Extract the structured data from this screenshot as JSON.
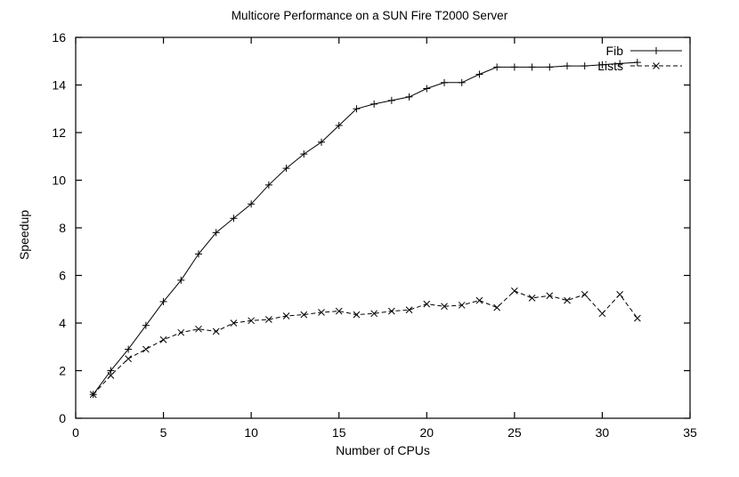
{
  "chart_data": {
    "type": "line",
    "title": "Multicore Performance on a SUN Fire T2000 Server",
    "xlabel": "Number of CPUs",
    "ylabel": "Speedup",
    "xlim": [
      0,
      35
    ],
    "ylim": [
      0,
      16
    ],
    "xticks": [
      0,
      5,
      10,
      15,
      20,
      25,
      30,
      35
    ],
    "yticks": [
      0,
      2,
      4,
      6,
      8,
      10,
      12,
      14,
      16
    ],
    "grid": false,
    "legend_position": "top-right-inside",
    "line_color": "#000000",
    "series": [
      {
        "name": "Fib",
        "marker": "plus",
        "line_style": "solid",
        "color": "#000000",
        "x": [
          1,
          2,
          3,
          4,
          5,
          6,
          7,
          8,
          9,
          10,
          11,
          12,
          13,
          14,
          15,
          16,
          17,
          18,
          19,
          20,
          21,
          22,
          23,
          24,
          25,
          26,
          27,
          28,
          29,
          30,
          31,
          32
        ],
        "y": [
          1.0,
          2.0,
          2.9,
          3.9,
          4.9,
          5.8,
          6.9,
          7.8,
          8.4,
          9.0,
          9.8,
          10.5,
          11.1,
          11.6,
          12.3,
          13.0,
          13.2,
          13.35,
          13.5,
          13.85,
          14.1,
          14.1,
          14.45,
          14.75,
          14.75,
          14.75,
          14.75,
          14.8,
          14.8,
          14.85,
          14.9,
          14.95
        ]
      },
      {
        "name": "Lists",
        "marker": "cross",
        "line_style": "dashed",
        "color": "#000000",
        "x": [
          1,
          2,
          3,
          4,
          5,
          6,
          7,
          8,
          9,
          10,
          11,
          12,
          13,
          14,
          15,
          16,
          17,
          18,
          19,
          20,
          21,
          22,
          23,
          24,
          25,
          26,
          27,
          28,
          29,
          30,
          31,
          32
        ],
        "y": [
          1.0,
          1.8,
          2.5,
          2.9,
          3.3,
          3.6,
          3.75,
          3.65,
          4.0,
          4.1,
          4.15,
          4.3,
          4.35,
          4.45,
          4.5,
          4.35,
          4.4,
          4.5,
          4.55,
          4.8,
          4.7,
          4.75,
          4.95,
          4.65,
          5.35,
          5.05,
          5.15,
          4.95,
          5.2,
          4.4,
          5.2,
          4.2
        ]
      }
    ]
  }
}
